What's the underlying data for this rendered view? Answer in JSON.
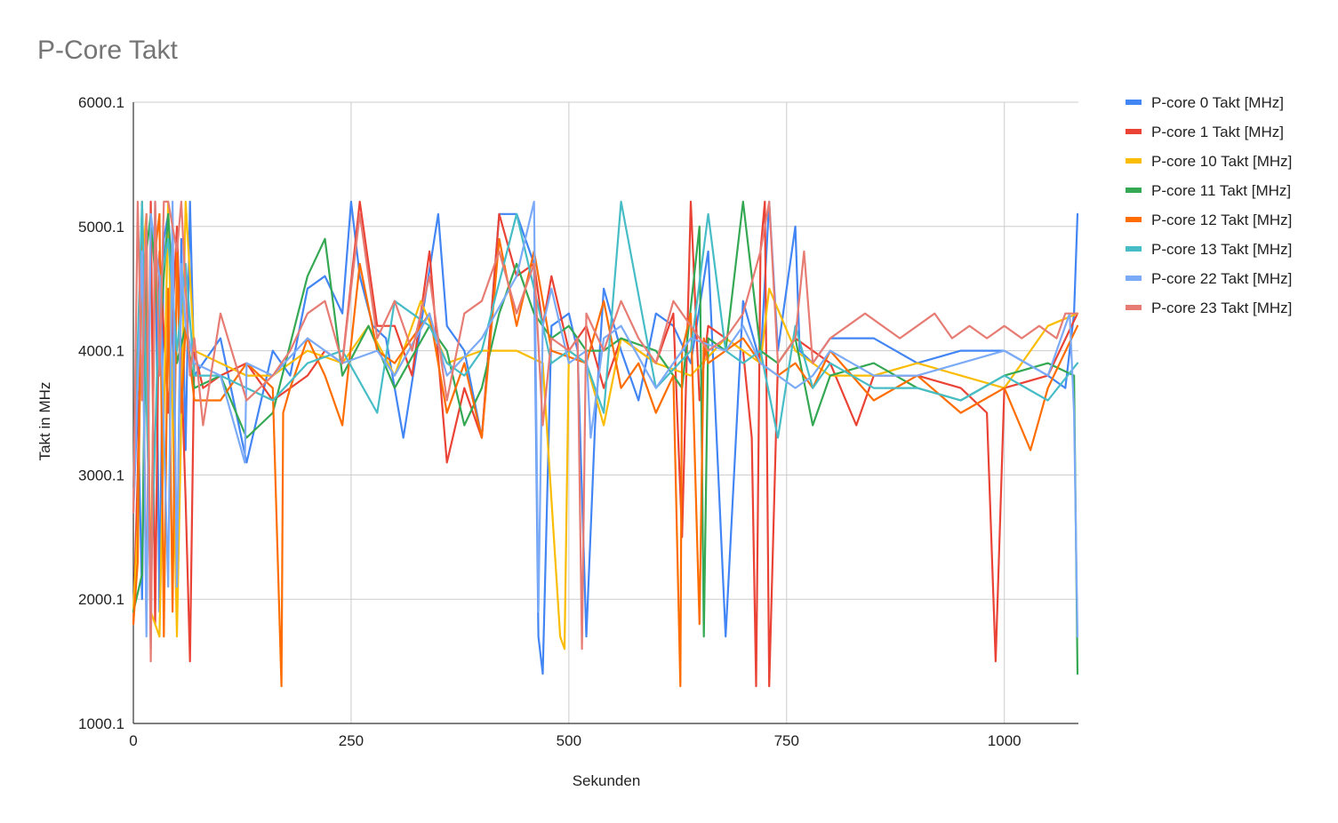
{
  "chart_data": {
    "type": "line",
    "title": "P-Core Takt",
    "xlabel": "Sekunden",
    "ylabel": "Takt in MHz",
    "xlim": [
      0,
      1085
    ],
    "ylim": [
      1000.1,
      6000.1
    ],
    "xticks": [
      0,
      250,
      500,
      750,
      1000
    ],
    "xtick_labels": [
      "0",
      "250",
      "500",
      "750",
      "1000"
    ],
    "yticks": [
      1000.1,
      2000.1,
      3000.1,
      4000.1,
      5000.1,
      6000.1
    ],
    "ytick_labels": [
      "1000.1",
      "2000.1",
      "3000.1",
      "4000.1",
      "5000.1",
      "6000.1"
    ],
    "grid": "vertical and horizontal",
    "legend_position": "right",
    "series": [
      {
        "name": "P-core 0 Takt [MHz]",
        "color": "#4285f4",
        "x": [
          0,
          5,
          10,
          15,
          20,
          25,
          30,
          35,
          40,
          45,
          50,
          55,
          60,
          65,
          70,
          80,
          100,
          130,
          160,
          180,
          200,
          220,
          240,
          250,
          260,
          275,
          290,
          310,
          330,
          350,
          360,
          380,
          400,
          420,
          440,
          460,
          465,
          470,
          480,
          500,
          510,
          520,
          530,
          540,
          560,
          580,
          600,
          620,
          640,
          660,
          680,
          700,
          720,
          730,
          740,
          760,
          765,
          780,
          800,
          850,
          900,
          950,
          1000,
          1050,
          1070,
          1080,
          1084
        ],
        "y": [
          2700,
          3600,
          2000,
          4700,
          1600,
          5200,
          1900,
          4900,
          5100,
          4500,
          2100,
          4900,
          3200,
          5200,
          3800,
          3900,
          4100,
          3100,
          4000,
          3800,
          4500,
          4600,
          4300,
          5200,
          4600,
          4200,
          4100,
          3300,
          4200,
          5100,
          4200,
          4000,
          3300,
          5100,
          5100,
          4700,
          1700,
          1400,
          4200,
          4300,
          4000,
          1700,
          3400,
          4500,
          4000,
          3600,
          4300,
          4200,
          3900,
          4800,
          1700,
          4400,
          3900,
          5200,
          4000,
          5000,
          4000,
          3900,
          4100,
          4100,
          3900,
          4000,
          4000,
          3800,
          3700,
          4300,
          5100
        ]
      },
      {
        "name": "P-core 1 Takt [MHz]",
        "color": "#ea4335",
        "x": [
          0,
          5,
          10,
          15,
          20,
          25,
          30,
          40,
          50,
          60,
          65,
          70,
          80,
          100,
          130,
          160,
          180,
          200,
          220,
          240,
          260,
          280,
          300,
          320,
          340,
          360,
          380,
          400,
          420,
          440,
          460,
          470,
          480,
          500,
          520,
          540,
          560,
          600,
          620,
          630,
          640,
          650,
          660,
          680,
          700,
          710,
          715,
          720,
          725,
          730,
          740,
          760,
          800,
          830,
          850,
          900,
          950,
          980,
          990,
          1000,
          1050,
          1084
        ],
        "y": [
          1800,
          3000,
          4900,
          1800,
          5200,
          1800,
          4800,
          3500,
          5000,
          2800,
          1500,
          4000,
          3700,
          3800,
          3900,
          3600,
          3700,
          3800,
          4000,
          3900,
          5200,
          4200,
          4200,
          3800,
          4800,
          3100,
          3700,
          3300,
          5100,
          4600,
          4700,
          4200,
          4600,
          4000,
          4200,
          3700,
          4100,
          3900,
          4300,
          2500,
          5200,
          3600,
          4200,
          4100,
          4000,
          3300,
          1300,
          4800,
          5200,
          1300,
          3900,
          4100,
          3900,
          3400,
          3800,
          3800,
          3700,
          3500,
          1500,
          3700,
          3800,
          4300
        ]
      },
      {
        "name": "P-core 10 Takt [MHz]",
        "color": "#fbbc04",
        "x": [
          0,
          5,
          10,
          15,
          20,
          30,
          40,
          50,
          60,
          70,
          100,
          130,
          160,
          200,
          240,
          270,
          300,
          330,
          360,
          400,
          440,
          470,
          490,
          495,
          500,
          520,
          540,
          560,
          600,
          640,
          680,
          720,
          730,
          760,
          800,
          850,
          900,
          950,
          1000,
          1050,
          1084
        ],
        "y": [
          1900,
          2600,
          4700,
          5100,
          1900,
          1700,
          5200,
          1700,
          5200,
          4000,
          3900,
          3800,
          3800,
          4000,
          3900,
          4200,
          3800,
          4400,
          3900,
          4000,
          4000,
          3900,
          1700,
          1600,
          4000,
          3900,
          3400,
          4100,
          3900,
          3800,
          4100,
          3900,
          4500,
          4000,
          3800,
          3800,
          3900,
          3800,
          3700,
          4200,
          4300
        ]
      },
      {
        "name": "P-core 11 Takt [MHz]",
        "color": "#34a853",
        "x": [
          0,
          10,
          15,
          20,
          30,
          40,
          50,
          60,
          70,
          100,
          130,
          160,
          200,
          220,
          240,
          270,
          300,
          340,
          360,
          380,
          400,
          420,
          440,
          460,
          480,
          500,
          520,
          540,
          560,
          600,
          630,
          650,
          655,
          660,
          680,
          700,
          720,
          740,
          760,
          780,
          800,
          850,
          900,
          950,
          1000,
          1050,
          1080,
          1084
        ],
        "y": [
          1900,
          2200,
          4800,
          5100,
          4100,
          5100,
          3900,
          4200,
          3700,
          3800,
          3300,
          3500,
          4600,
          4900,
          3800,
          4200,
          3700,
          4200,
          4000,
          3400,
          3700,
          4300,
          4700,
          4300,
          4100,
          4200,
          4000,
          4000,
          4100,
          4000,
          3700,
          5000,
          1700,
          4100,
          4000,
          5200,
          4000,
          3900,
          4100,
          3400,
          3800,
          3900,
          3700,
          3600,
          3800,
          3900,
          3800,
          1400
        ]
      },
      {
        "name": "P-core 12 Takt [MHz]",
        "color": "#ff6d01",
        "x": [
          0,
          5,
          10,
          15,
          20,
          25,
          30,
          35,
          40,
          45,
          50,
          55,
          60,
          70,
          100,
          130,
          160,
          170,
          172,
          180,
          200,
          220,
          240,
          260,
          280,
          300,
          340,
          360,
          380,
          400,
          420,
          440,
          460,
          480,
          520,
          540,
          560,
          580,
          600,
          620,
          628,
          630,
          640,
          650,
          655,
          660,
          680,
          700,
          720,
          740,
          760,
          780,
          800,
          850,
          900,
          950,
          1000,
          1030,
          1050,
          1084
        ],
        "y": [
          1800,
          2300,
          5200,
          3800,
          2000,
          4800,
          5100,
          1700,
          4500,
          1900,
          4800,
          3500,
          4200,
          3600,
          3600,
          3900,
          3700,
          1300,
          3500,
          3700,
          4100,
          3800,
          3400,
          4700,
          4000,
          3900,
          4300,
          3500,
          3900,
          3300,
          4900,
          4200,
          4800,
          4000,
          3900,
          4400,
          3700,
          3900,
          3500,
          3800,
          1300,
          4000,
          4300,
          1800,
          4100,
          3900,
          4000,
          4100,
          3900,
          3800,
          3900,
          3700,
          4000,
          3600,
          3800,
          3500,
          3700,
          3200,
          3700,
          4200
        ]
      },
      {
        "name": "P-core 13 Takt [MHz]",
        "color": "#46bdc6",
        "x": [
          0,
          10,
          20,
          30,
          40,
          50,
          60,
          70,
          100,
          130,
          160,
          200,
          240,
          280,
          300,
          340,
          360,
          380,
          400,
          440,
          460,
          470,
          480,
          500,
          520,
          540,
          560,
          600,
          640,
          660,
          680,
          700,
          720,
          740,
          760,
          780,
          800,
          850,
          900,
          950,
          1000,
          1050,
          1084
        ],
        "y": [
          2900,
          5200,
          2100,
          4500,
          4900,
          4000,
          4700,
          3800,
          3800,
          3700,
          3600,
          3900,
          4000,
          3500,
          4400,
          4200,
          3900,
          3800,
          4000,
          5100,
          4500,
          4200,
          3900,
          4000,
          3900,
          3500,
          5200,
          3700,
          4000,
          5100,
          4000,
          3900,
          4000,
          3300,
          4200,
          3700,
          3900,
          3700,
          3700,
          3600,
          3800,
          3600,
          3900
        ]
      },
      {
        "name": "P-core 22 Takt [MHz]",
        "color": "#7baaf7",
        "x": [
          0,
          10,
          15,
          20,
          30,
          40,
          45,
          50,
          55,
          60,
          70,
          100,
          128,
          130,
          160,
          200,
          240,
          280,
          300,
          340,
          360,
          400,
          440,
          460,
          465,
          470,
          480,
          500,
          520,
          525,
          540,
          560,
          600,
          640,
          680,
          700,
          720,
          740,
          760,
          780,
          800,
          850,
          900,
          950,
          1000,
          1050,
          1075,
          1080,
          1084
        ],
        "y": [
          2700,
          4800,
          1700,
          5100,
          4600,
          2100,
          5200,
          2100,
          4700,
          4200,
          3900,
          3800,
          3100,
          3900,
          3800,
          4100,
          3900,
          4000,
          3800,
          4300,
          3800,
          4100,
          4600,
          5200,
          1900,
          4200,
          4500,
          3900,
          4000,
          3300,
          4100,
          4200,
          3700,
          4100,
          4000,
          4200,
          3900,
          3800,
          3700,
          3800,
          4000,
          3800,
          3800,
          3900,
          4000,
          3800,
          4300,
          3500,
          1700
        ]
      },
      {
        "name": "P-core 23 Takt [MHz]",
        "color": "#e67c73",
        "x": [
          0,
          5,
          10,
          15,
          20,
          25,
          30,
          35,
          40,
          45,
          50,
          55,
          60,
          65,
          70,
          80,
          100,
          130,
          160,
          180,
          200,
          220,
          240,
          260,
          280,
          300,
          320,
          340,
          360,
          380,
          400,
          420,
          440,
          460,
          470,
          480,
          500,
          510,
          515,
          520,
          540,
          560,
          580,
          600,
          620,
          640,
          660,
          680,
          700,
          720,
          730,
          740,
          760,
          770,
          780,
          800,
          820,
          840,
          860,
          880,
          900,
          920,
          940,
          960,
          980,
          1000,
          1020,
          1040,
          1060,
          1070,
          1084
        ],
        "y": [
          2700,
          5200,
          3600,
          5100,
          1500,
          5200,
          3800,
          5200,
          5200,
          5000,
          4800,
          5200,
          4500,
          3800,
          4100,
          3400,
          4300,
          3600,
          3800,
          4000,
          4300,
          4400,
          3900,
          5100,
          4100,
          4400,
          4000,
          4600,
          3600,
          4300,
          4400,
          4800,
          4300,
          4700,
          3400,
          4100,
          4000,
          4100,
          1600,
          4300,
          4000,
          4400,
          4100,
          3900,
          4400,
          4200,
          4000,
          4100,
          4300,
          4800,
          5200,
          3900,
          4100,
          4800,
          3900,
          4100,
          4200,
          4300,
          4200,
          4100,
          4200,
          4300,
          4100,
          4200,
          4100,
          4200,
          4100,
          4200,
          4100,
          4300,
          4300
        ]
      }
    ]
  }
}
